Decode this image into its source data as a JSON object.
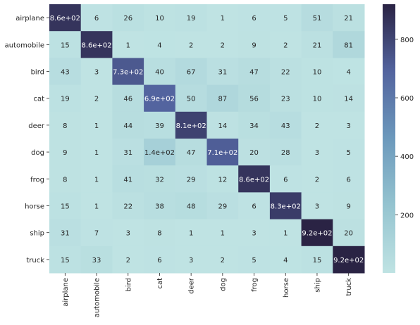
{
  "chart_data": {
    "type": "heatmap",
    "title": "",
    "xlabel": "",
    "ylabel": "",
    "x_categories": [
      "airplane",
      "automobile",
      "bird",
      "cat",
      "deer",
      "dog",
      "frog",
      "horse",
      "ship",
      "truck"
    ],
    "y_categories": [
      "airplane",
      "automobile",
      "bird",
      "cat",
      "deer",
      "dog",
      "frog",
      "horse",
      "ship",
      "truck"
    ],
    "values": [
      [
        860,
        6,
        26,
        10,
        19,
        1,
        6,
        5,
        51,
        21
      ],
      [
        15,
        860,
        1,
        4,
        2,
        2,
        9,
        2,
        21,
        81
      ],
      [
        43,
        3,
        730,
        40,
        67,
        31,
        47,
        22,
        10,
        4
      ],
      [
        19,
        2,
        46,
        690,
        50,
        87,
        56,
        23,
        10,
        14
      ],
      [
        8,
        1,
        44,
        39,
        810,
        14,
        34,
        43,
        2,
        3
      ],
      [
        9,
        1,
        31,
        140,
        47,
        710,
        20,
        28,
        3,
        5
      ],
      [
        8,
        1,
        41,
        32,
        29,
        12,
        860,
        6,
        2,
        6
      ],
      [
        15,
        1,
        22,
        38,
        48,
        29,
        6,
        830,
        3,
        9
      ],
      [
        31,
        7,
        3,
        8,
        1,
        1,
        3,
        1,
        920,
        20
      ],
      [
        15,
        33,
        2,
        6,
        3,
        2,
        5,
        4,
        15,
        920
      ]
    ],
    "annotations": [
      [
        "8.6e+02",
        "6",
        "26",
        "10",
        "19",
        "1",
        "6",
        "5",
        "51",
        "21"
      ],
      [
        "15",
        "8.6e+02",
        "1",
        "4",
        "2",
        "2",
        "9",
        "2",
        "21",
        "81"
      ],
      [
        "43",
        "3",
        "7.3e+02",
        "40",
        "67",
        "31",
        "47",
        "22",
        "10",
        "4"
      ],
      [
        "19",
        "2",
        "46",
        "6.9e+02",
        "50",
        "87",
        "56",
        "23",
        "10",
        "14"
      ],
      [
        "8",
        "1",
        "44",
        "39",
        "8.1e+02",
        "14",
        "34",
        "43",
        "2",
        "3"
      ],
      [
        "9",
        "1",
        "31",
        "1.4e+02",
        "47",
        "7.1e+02",
        "20",
        "28",
        "3",
        "5"
      ],
      [
        "8",
        "1",
        "41",
        "32",
        "29",
        "12",
        "8.6e+02",
        "6",
        "2",
        "6"
      ],
      [
        "15",
        "1",
        "22",
        "38",
        "48",
        "29",
        "6",
        "8.3e+02",
        "3",
        "9"
      ],
      [
        "31",
        "7",
        "3",
        "8",
        "1",
        "1",
        "3",
        "1",
        "9.2e+02",
        "20"
      ],
      [
        "15",
        "33",
        "2",
        "6",
        "3",
        "2",
        "5",
        "4",
        "15",
        "9.2e+02"
      ]
    ],
    "colorbar": {
      "min": 1,
      "max": 920,
      "ticks": [
        200,
        400,
        600,
        800
      ],
      "tick_labels": [
        "200",
        "400",
        "600",
        "800"
      ],
      "colors": [
        "#bfe3e3",
        "#95c4d0",
        "#6c99bc",
        "#53649f",
        "#2a2344"
      ]
    }
  }
}
